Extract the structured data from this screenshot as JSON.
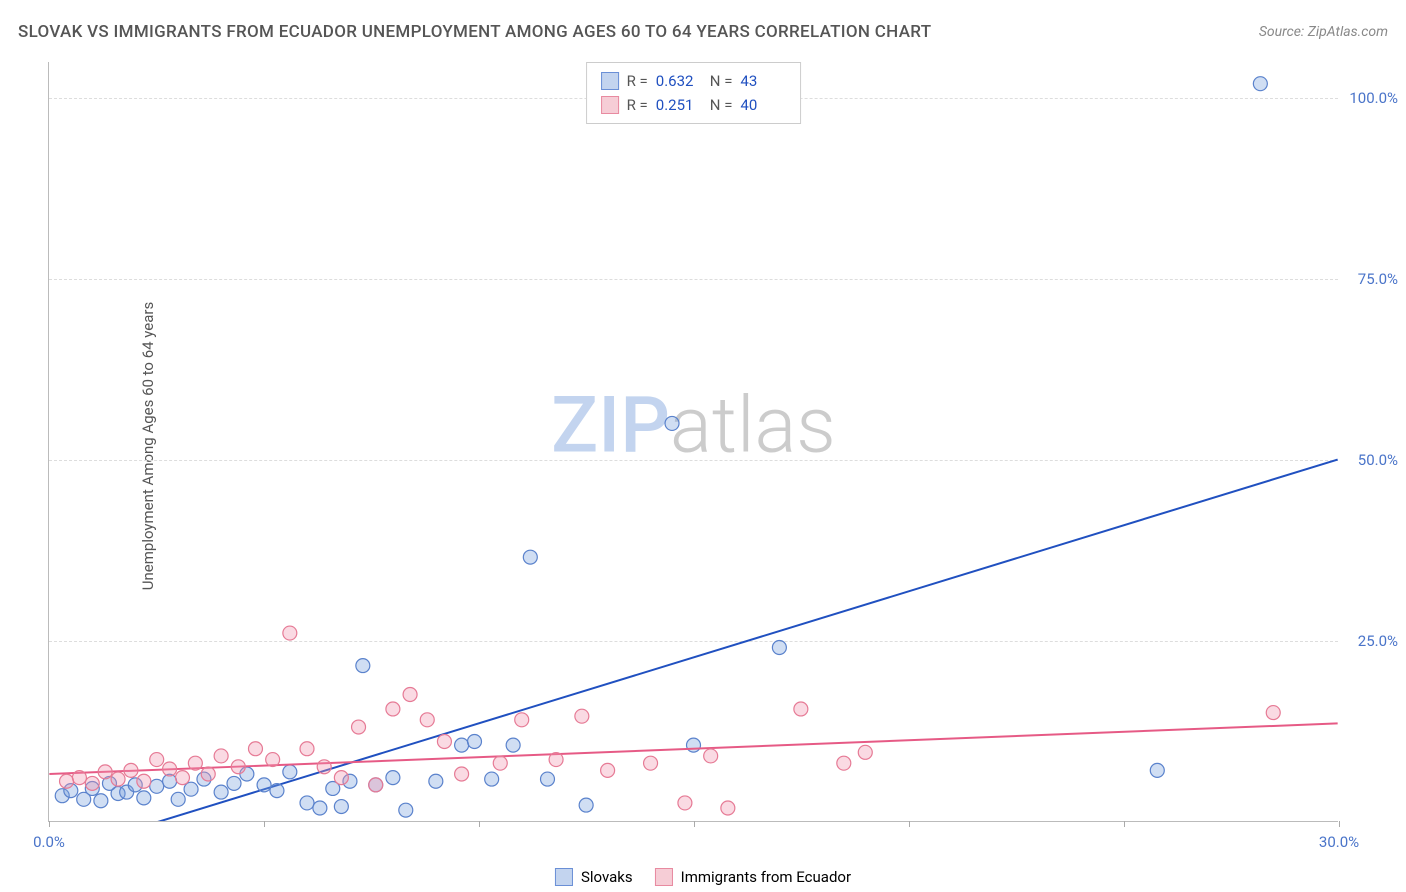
{
  "title": "SLOVAK VS IMMIGRANTS FROM ECUADOR UNEMPLOYMENT AMONG AGES 60 TO 64 YEARS CORRELATION CHART",
  "source": "Source: ZipAtlas.com",
  "ylabel": "Unemployment Among Ages 60 to 64 years",
  "watermark_a": "ZIP",
  "watermark_b": "atlas",
  "chart": {
    "type": "scatter",
    "background_color": "#ffffff",
    "grid_color": "#dddddd",
    "axis_color": "#bbbbbb",
    "xlim": [
      0,
      30
    ],
    "ylim": [
      0,
      105
    ],
    "xticks": [
      0,
      5,
      10,
      15,
      20,
      25,
      30
    ],
    "xtick_labels": [
      "0.0%",
      "",
      "",
      "",
      "",
      "",
      "30.0%"
    ],
    "yticks": [
      25,
      50,
      75,
      100
    ],
    "ytick_labels": [
      "25.0%",
      "50.0%",
      "75.0%",
      "100.0%"
    ],
    "xtick_color": "#4a74c9",
    "ytick_color": "#4a74c9",
    "marker_radius": 7,
    "marker_stroke_width": 1.2,
    "line_width": 2,
    "watermark_color_a": "#c3d4ef",
    "watermark_color_b": "#cccccc"
  },
  "series": [
    {
      "name": "Slovaks",
      "swatch_fill": "#c3d4ef",
      "swatch_border": "#6a8fd6",
      "marker_fill": "rgba(120,160,220,0.35)",
      "marker_stroke": "#5a82cc",
      "line_color": "#2050c0",
      "R": "0.632",
      "N": "43",
      "trend": {
        "x1": 1.5,
        "y1": -2,
        "x2": 30,
        "y2": 50
      },
      "points": [
        [
          0.3,
          3.5
        ],
        [
          0.5,
          4.2
        ],
        [
          0.8,
          3.0
        ],
        [
          1.0,
          4.5
        ],
        [
          1.2,
          2.8
        ],
        [
          1.4,
          5.2
        ],
        [
          1.6,
          3.8
        ],
        [
          1.8,
          4.0
        ],
        [
          2.0,
          5.0
        ],
        [
          2.2,
          3.2
        ],
        [
          2.5,
          4.8
        ],
        [
          2.8,
          5.5
        ],
        [
          3.0,
          3.0
        ],
        [
          3.3,
          4.4
        ],
        [
          3.6,
          5.8
        ],
        [
          4.0,
          4.0
        ],
        [
          4.3,
          5.2
        ],
        [
          4.6,
          6.5
        ],
        [
          5.0,
          5.0
        ],
        [
          5.3,
          4.2
        ],
        [
          5.6,
          6.8
        ],
        [
          6.0,
          2.5
        ],
        [
          6.3,
          1.8
        ],
        [
          6.6,
          4.5
        ],
        [
          6.8,
          2.0
        ],
        [
          7.0,
          5.5
        ],
        [
          7.3,
          21.5
        ],
        [
          7.6,
          5.0
        ],
        [
          8.0,
          6.0
        ],
        [
          8.3,
          1.5
        ],
        [
          9.0,
          5.5
        ],
        [
          9.6,
          10.5
        ],
        [
          9.9,
          11.0
        ],
        [
          10.3,
          5.8
        ],
        [
          10.8,
          10.5
        ],
        [
          11.2,
          36.5
        ],
        [
          11.6,
          5.8
        ],
        [
          12.5,
          2.2
        ],
        [
          14.5,
          55.0
        ],
        [
          15.0,
          10.5
        ],
        [
          17.0,
          24.0
        ],
        [
          25.8,
          7.0
        ],
        [
          28.2,
          102.0
        ]
      ]
    },
    {
      "name": "Immigrants from Ecuador",
      "swatch_fill": "#f6cdd6",
      "swatch_border": "#e88aa0",
      "marker_fill": "rgba(240,150,175,0.35)",
      "marker_stroke": "#e67a95",
      "line_color": "#e65a85",
      "R": "0.251",
      "N": "40",
      "trend": {
        "x1": 0,
        "y1": 6.5,
        "x2": 30,
        "y2": 13.5
      },
      "points": [
        [
          0.4,
          5.5
        ],
        [
          0.7,
          6.0
        ],
        [
          1.0,
          5.2
        ],
        [
          1.3,
          6.8
        ],
        [
          1.6,
          5.8
        ],
        [
          1.9,
          7.0
        ],
        [
          2.2,
          5.5
        ],
        [
          2.5,
          8.5
        ],
        [
          2.8,
          7.2
        ],
        [
          3.1,
          6.0
        ],
        [
          3.4,
          8.0
        ],
        [
          3.7,
          6.5
        ],
        [
          4.0,
          9.0
        ],
        [
          4.4,
          7.5
        ],
        [
          4.8,
          10.0
        ],
        [
          5.2,
          8.5
        ],
        [
          5.6,
          26.0
        ],
        [
          6.0,
          10.0
        ],
        [
          6.4,
          7.5
        ],
        [
          6.8,
          6.0
        ],
        [
          7.2,
          13.0
        ],
        [
          7.6,
          5.0
        ],
        [
          8.0,
          15.5
        ],
        [
          8.4,
          17.5
        ],
        [
          8.8,
          14.0
        ],
        [
          9.2,
          11.0
        ],
        [
          9.6,
          6.5
        ],
        [
          10.5,
          8.0
        ],
        [
          11.0,
          14.0
        ],
        [
          11.8,
          8.5
        ],
        [
          12.4,
          14.5
        ],
        [
          13.0,
          7.0
        ],
        [
          14.0,
          8.0
        ],
        [
          14.8,
          2.5
        ],
        [
          15.4,
          9.0
        ],
        [
          15.8,
          1.8
        ],
        [
          17.5,
          15.5
        ],
        [
          18.5,
          8.0
        ],
        [
          19.0,
          9.5
        ],
        [
          28.5,
          15.0
        ]
      ]
    }
  ],
  "legend_top": {
    "r_label": "R =",
    "n_label": "N ="
  }
}
